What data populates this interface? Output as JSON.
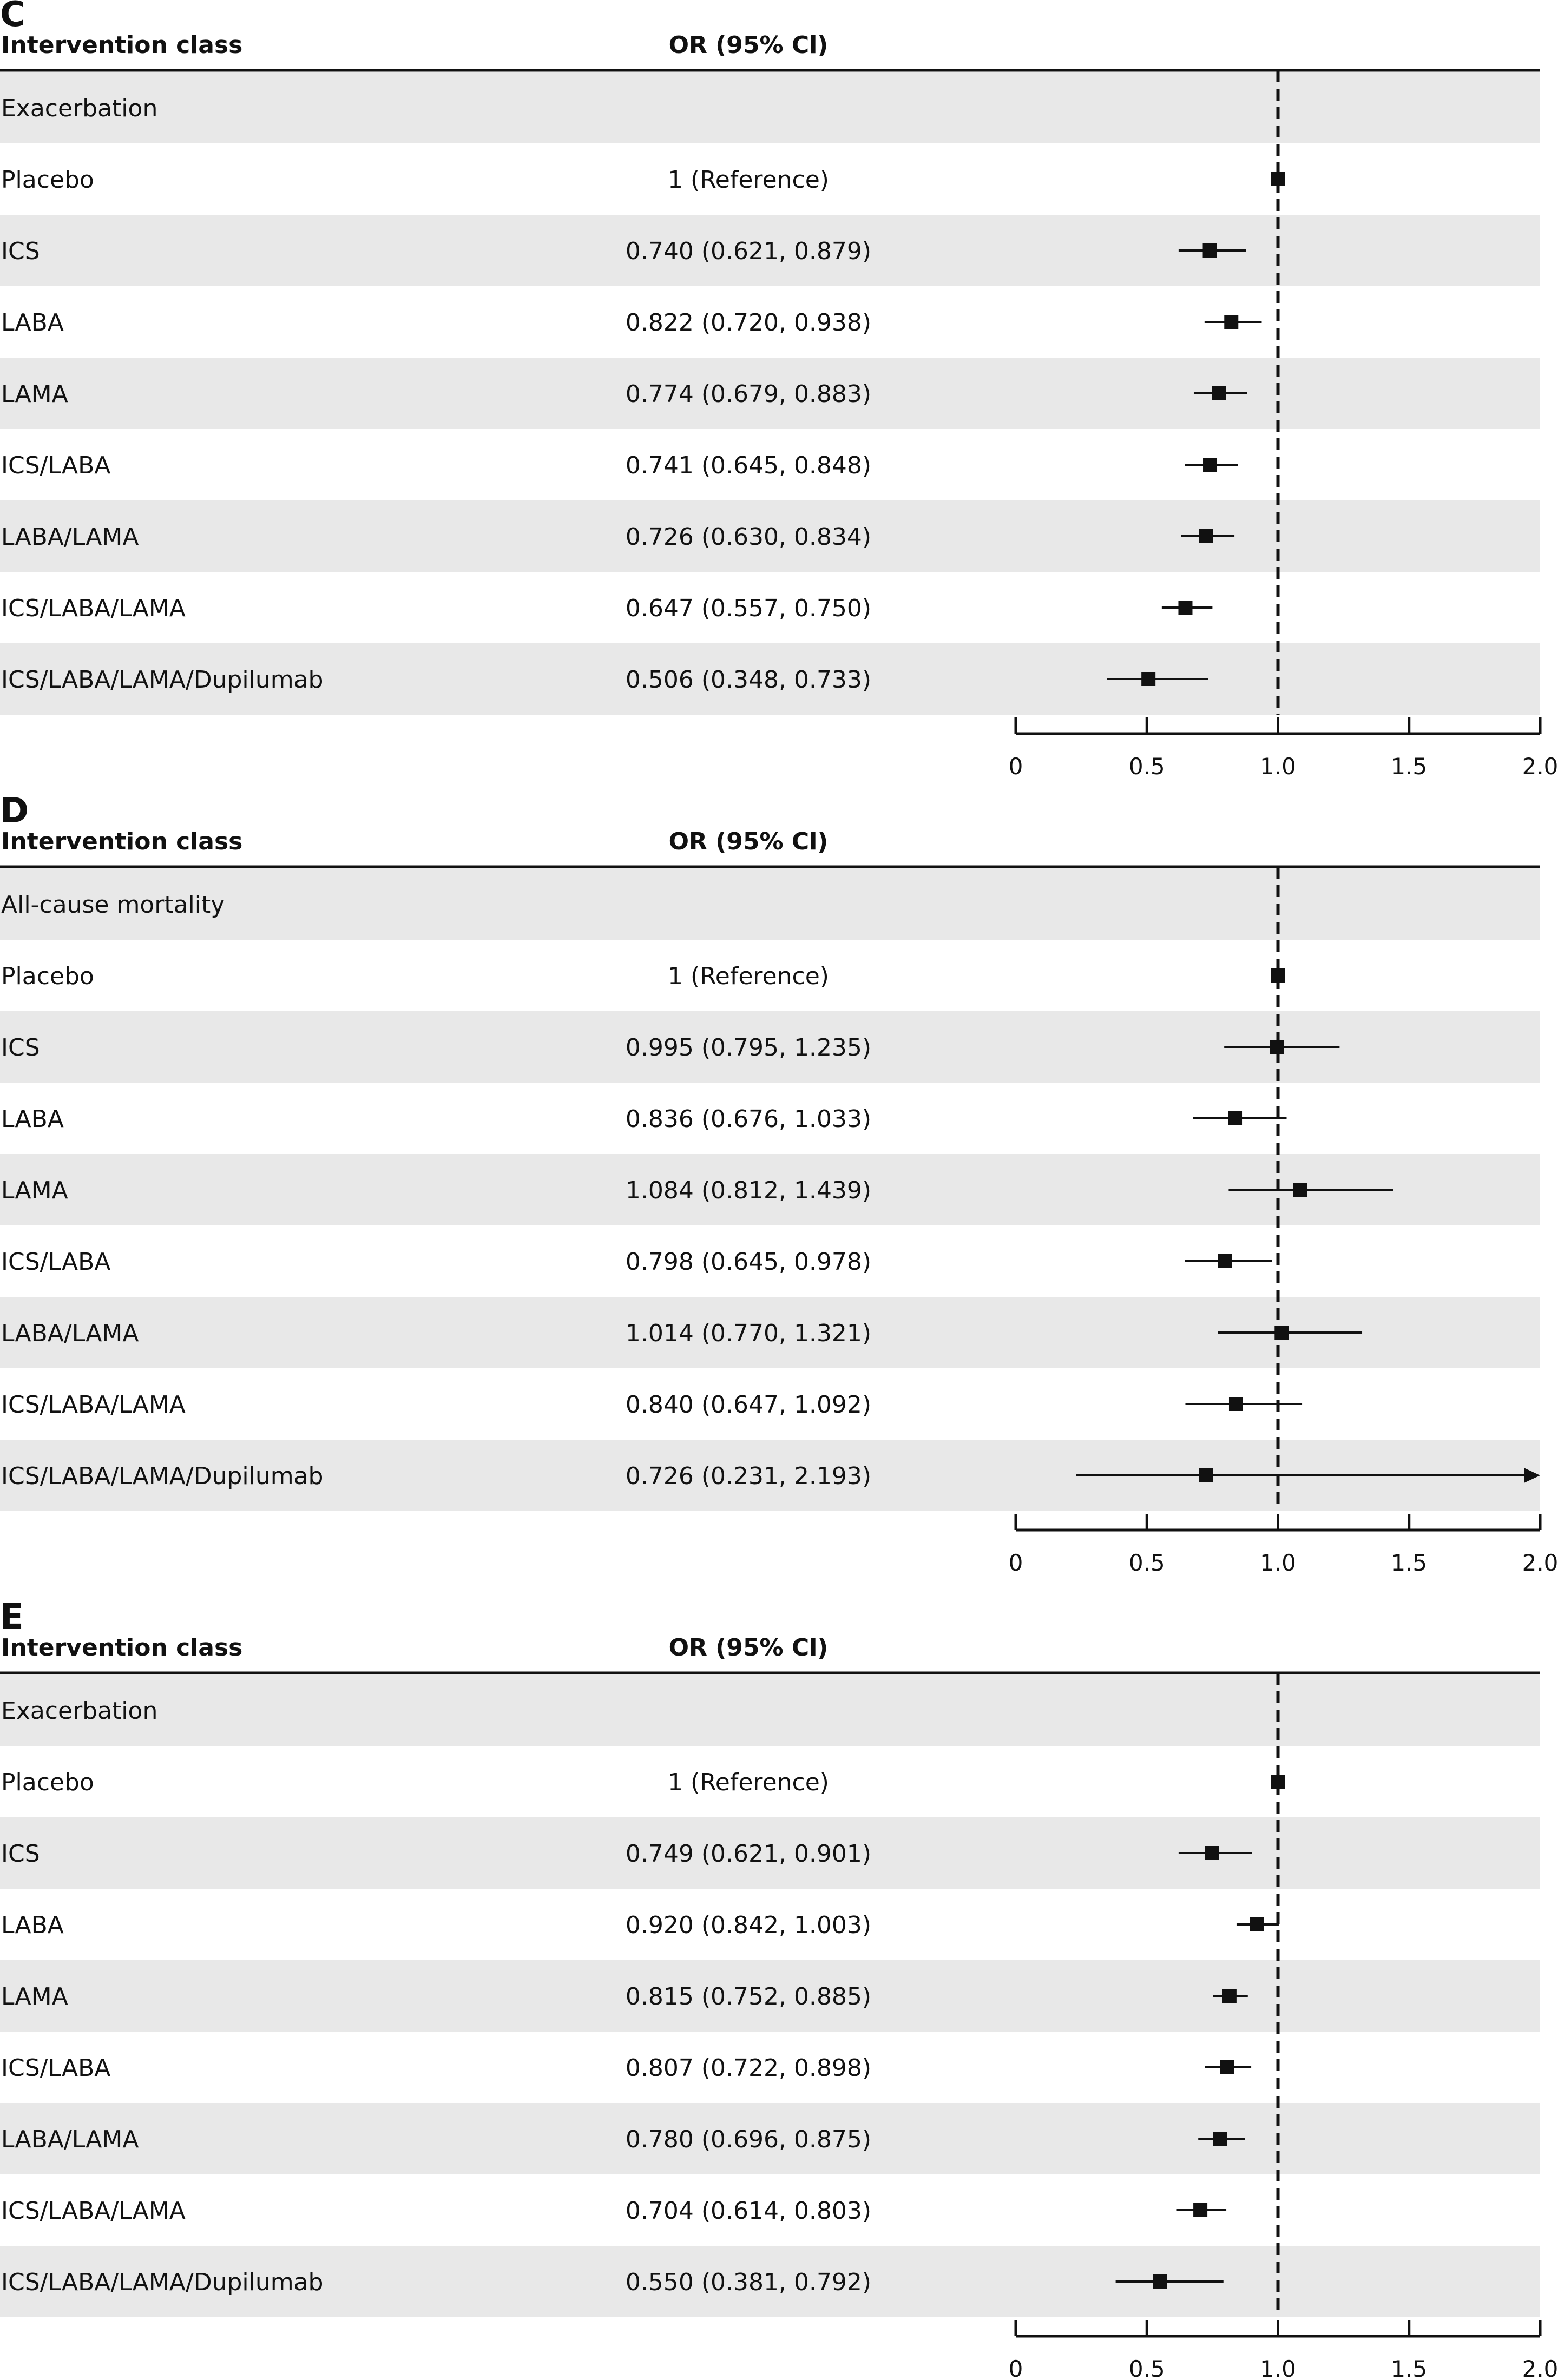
{
  "chart_data": [
    {
      "type": "forest",
      "panel_letter": "C",
      "header_label": "Intervention class",
      "header_stat": "OR (95% Cl)",
      "group_label": "Exacerbation",
      "xlim": [
        0,
        2.0
      ],
      "reference_value": 1.0,
      "ticks": [
        "0",
        "0.5",
        "1.0",
        "1.5",
        "2.0"
      ],
      "tick_values": [
        0,
        0.5,
        1.0,
        1.5,
        2.0
      ],
      "rows": [
        {
          "label": "Placebo",
          "text": "1 (Reference)",
          "or": 1.0,
          "lo": 1.0,
          "hi": 1.0
        },
        {
          "label": "ICS",
          "text": "0.740 (0.621, 0.879)",
          "or": 0.74,
          "lo": 0.621,
          "hi": 0.879
        },
        {
          "label": "LABA",
          "text": "0.822 (0.720, 0.938)",
          "or": 0.822,
          "lo": 0.72,
          "hi": 0.938
        },
        {
          "label": "LAMA",
          "text": "0.774 (0.679, 0.883)",
          "or": 0.774,
          "lo": 0.679,
          "hi": 0.883
        },
        {
          "label": "ICS/LABA",
          "text": "0.741 (0.645, 0.848)",
          "or": 0.741,
          "lo": 0.645,
          "hi": 0.848
        },
        {
          "label": "LABA/LAMA",
          "text": "0.726 (0.630, 0.834)",
          "or": 0.726,
          "lo": 0.63,
          "hi": 0.834
        },
        {
          "label": "ICS/LABA/LAMA",
          "text": "0.647 (0.557, 0.750)",
          "or": 0.647,
          "lo": 0.557,
          "hi": 0.75
        },
        {
          "label": "ICS/LABA/LAMA/Dupilumab",
          "text": "0.506 (0.348, 0.733)",
          "or": 0.506,
          "lo": 0.348,
          "hi": 0.733
        }
      ]
    },
    {
      "type": "forest",
      "panel_letter": "D",
      "header_label": "Intervention class",
      "header_stat": "OR (95% Cl)",
      "group_label": "All-cause mortality",
      "xlim": [
        0,
        2.0
      ],
      "reference_value": 1.0,
      "ticks": [
        "0",
        "0.5",
        "1.0",
        "1.5",
        "2.0"
      ],
      "tick_values": [
        0,
        0.5,
        1.0,
        1.5,
        2.0
      ],
      "rows": [
        {
          "label": "Placebo",
          "text": "1 (Reference)",
          "or": 1.0,
          "lo": 1.0,
          "hi": 1.0
        },
        {
          "label": "ICS",
          "text": "0.995 (0.795, 1.235)",
          "or": 0.995,
          "lo": 0.795,
          "hi": 1.235
        },
        {
          "label": "LABA",
          "text": "0.836 (0.676, 1.033)",
          "or": 0.836,
          "lo": 0.676,
          "hi": 1.033
        },
        {
          "label": "LAMA",
          "text": "1.084 (0.812, 1.439)",
          "or": 1.084,
          "lo": 0.812,
          "hi": 1.439
        },
        {
          "label": "ICS/LABA",
          "text": "0.798 (0.645, 0.978)",
          "or": 0.798,
          "lo": 0.645,
          "hi": 0.978
        },
        {
          "label": "LABA/LAMA",
          "text": "1.014 (0.770, 1.321)",
          "or": 1.014,
          "lo": 0.77,
          "hi": 1.321
        },
        {
          "label": "ICS/LABA/LAMA",
          "text": "0.840 (0.647, 1.092)",
          "or": 0.84,
          "lo": 0.647,
          "hi": 1.092
        },
        {
          "label": "ICS/LABA/LAMA/Dupilumab",
          "text": "0.726 (0.231, 2.193)",
          "or": 0.726,
          "lo": 0.231,
          "hi": 2.193
        }
      ]
    },
    {
      "type": "forest",
      "panel_letter": "E",
      "header_label": "Intervention class",
      "header_stat": "OR (95% Cl)",
      "group_label": "Exacerbation",
      "xlim": [
        0,
        2.0
      ],
      "reference_value": 1.0,
      "ticks": [
        "0",
        "0.5",
        "1.0",
        "1.5",
        "2.0"
      ],
      "tick_values": [
        0,
        0.5,
        1.0,
        1.5,
        2.0
      ],
      "rows": [
        {
          "label": "Placebo",
          "text": "1 (Reference)",
          "or": 1.0,
          "lo": 1.0,
          "hi": 1.0
        },
        {
          "label": "ICS",
          "text": "0.749 (0.621, 0.901)",
          "or": 0.749,
          "lo": 0.621,
          "hi": 0.901
        },
        {
          "label": "LABA",
          "text": "0.920 (0.842, 1.003)",
          "or": 0.92,
          "lo": 0.842,
          "hi": 1.003
        },
        {
          "label": "LAMA",
          "text": "0.815 (0.752, 0.885)",
          "or": 0.815,
          "lo": 0.752,
          "hi": 0.885
        },
        {
          "label": "ICS/LABA",
          "text": "0.807 (0.722, 0.898)",
          "or": 0.807,
          "lo": 0.722,
          "hi": 0.898
        },
        {
          "label": "LABA/LAMA",
          "text": "0.780 (0.696, 0.875)",
          "or": 0.78,
          "lo": 0.696,
          "hi": 0.875
        },
        {
          "label": "ICS/LABA/LAMA",
          "text": "0.704 (0.614, 0.803)",
          "or": 0.704,
          "lo": 0.614,
          "hi": 0.803
        },
        {
          "label": "ICS/LABA/LAMA/Dupilumab",
          "text": "0.550 (0.381, 0.792)",
          "or": 0.55,
          "lo": 0.381,
          "hi": 0.792
        }
      ]
    }
  ],
  "colors": {
    "row_band": "#e8e8e8",
    "ink": "#111111",
    "background": "#ffffff"
  }
}
